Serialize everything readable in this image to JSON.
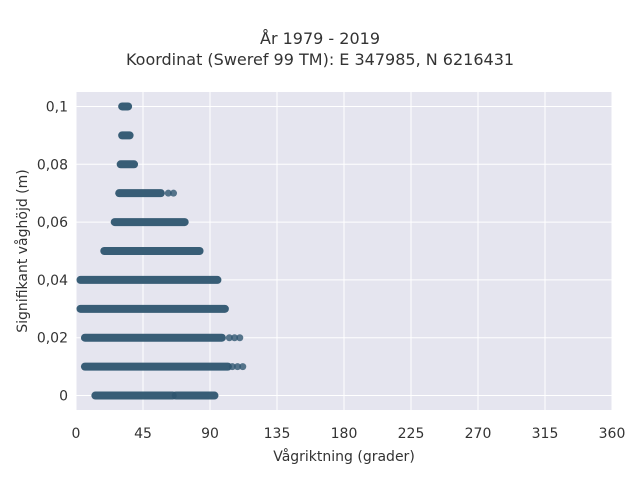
{
  "title_line1": "År 1979 - 2019",
  "title_line2": "Koordinat (Sweref 99 TM): E 347985, N 6216431",
  "chart_data": {
    "type": "scatter",
    "title": "År 1979 - 2019 / Koordinat (Sweref 99 TM): E 347985, N 6216431",
    "xlabel": "Vågriktning (grader)",
    "ylabel": "Signifikant våghöjd (m)",
    "xlim": [
      0,
      360
    ],
    "ylim": [
      -0.005,
      0.105
    ],
    "xticks": [
      0,
      45,
      90,
      135,
      180,
      225,
      270,
      315,
      360
    ],
    "xtick_labels": [
      "0",
      "45",
      "90",
      "135",
      "180",
      "225",
      "270",
      "315",
      "360"
    ],
    "yticks": [
      0,
      0.02,
      0.04,
      0.06,
      0.08,
      0.1
    ],
    "ytick_labels": [
      "0",
      "0,02",
      "0,04",
      "0,06",
      "0,08",
      "0,1"
    ],
    "grid": true,
    "marker_color": "#2f5670",
    "background_color": "#e5e5ef",
    "bands": [
      {
        "y": 0.0,
        "x_ranges": [
          [
            13,
            65
          ],
          [
            67,
            93
          ]
        ]
      },
      {
        "y": 0.01,
        "x_ranges": [
          [
            6,
            102
          ]
        ],
        "sparse_to": [
          [
            105,
            112
          ]
        ]
      },
      {
        "y": 0.02,
        "x_ranges": [
          [
            6,
            98
          ]
        ],
        "sparse_to": [
          [
            103,
            110
          ]
        ]
      },
      {
        "y": 0.03,
        "x_ranges": [
          [
            3,
            100
          ]
        ]
      },
      {
        "y": 0.04,
        "x_ranges": [
          [
            3,
            95
          ]
        ]
      },
      {
        "y": 0.05,
        "x_ranges": [
          [
            19,
            83
          ]
        ]
      },
      {
        "y": 0.06,
        "x_ranges": [
          [
            26,
            73
          ]
        ]
      },
      {
        "y": 0.07,
        "x_ranges": [
          [
            29,
            57
          ]
        ],
        "sparse_to": [
          [
            62,
            66
          ]
        ]
      },
      {
        "y": 0.08,
        "x_ranges": [
          [
            30,
            39
          ]
        ]
      },
      {
        "y": 0.09,
        "x_ranges": [
          [
            31,
            36
          ]
        ]
      },
      {
        "y": 0.1,
        "x_ranges": [
          [
            31,
            35
          ]
        ]
      }
    ]
  }
}
